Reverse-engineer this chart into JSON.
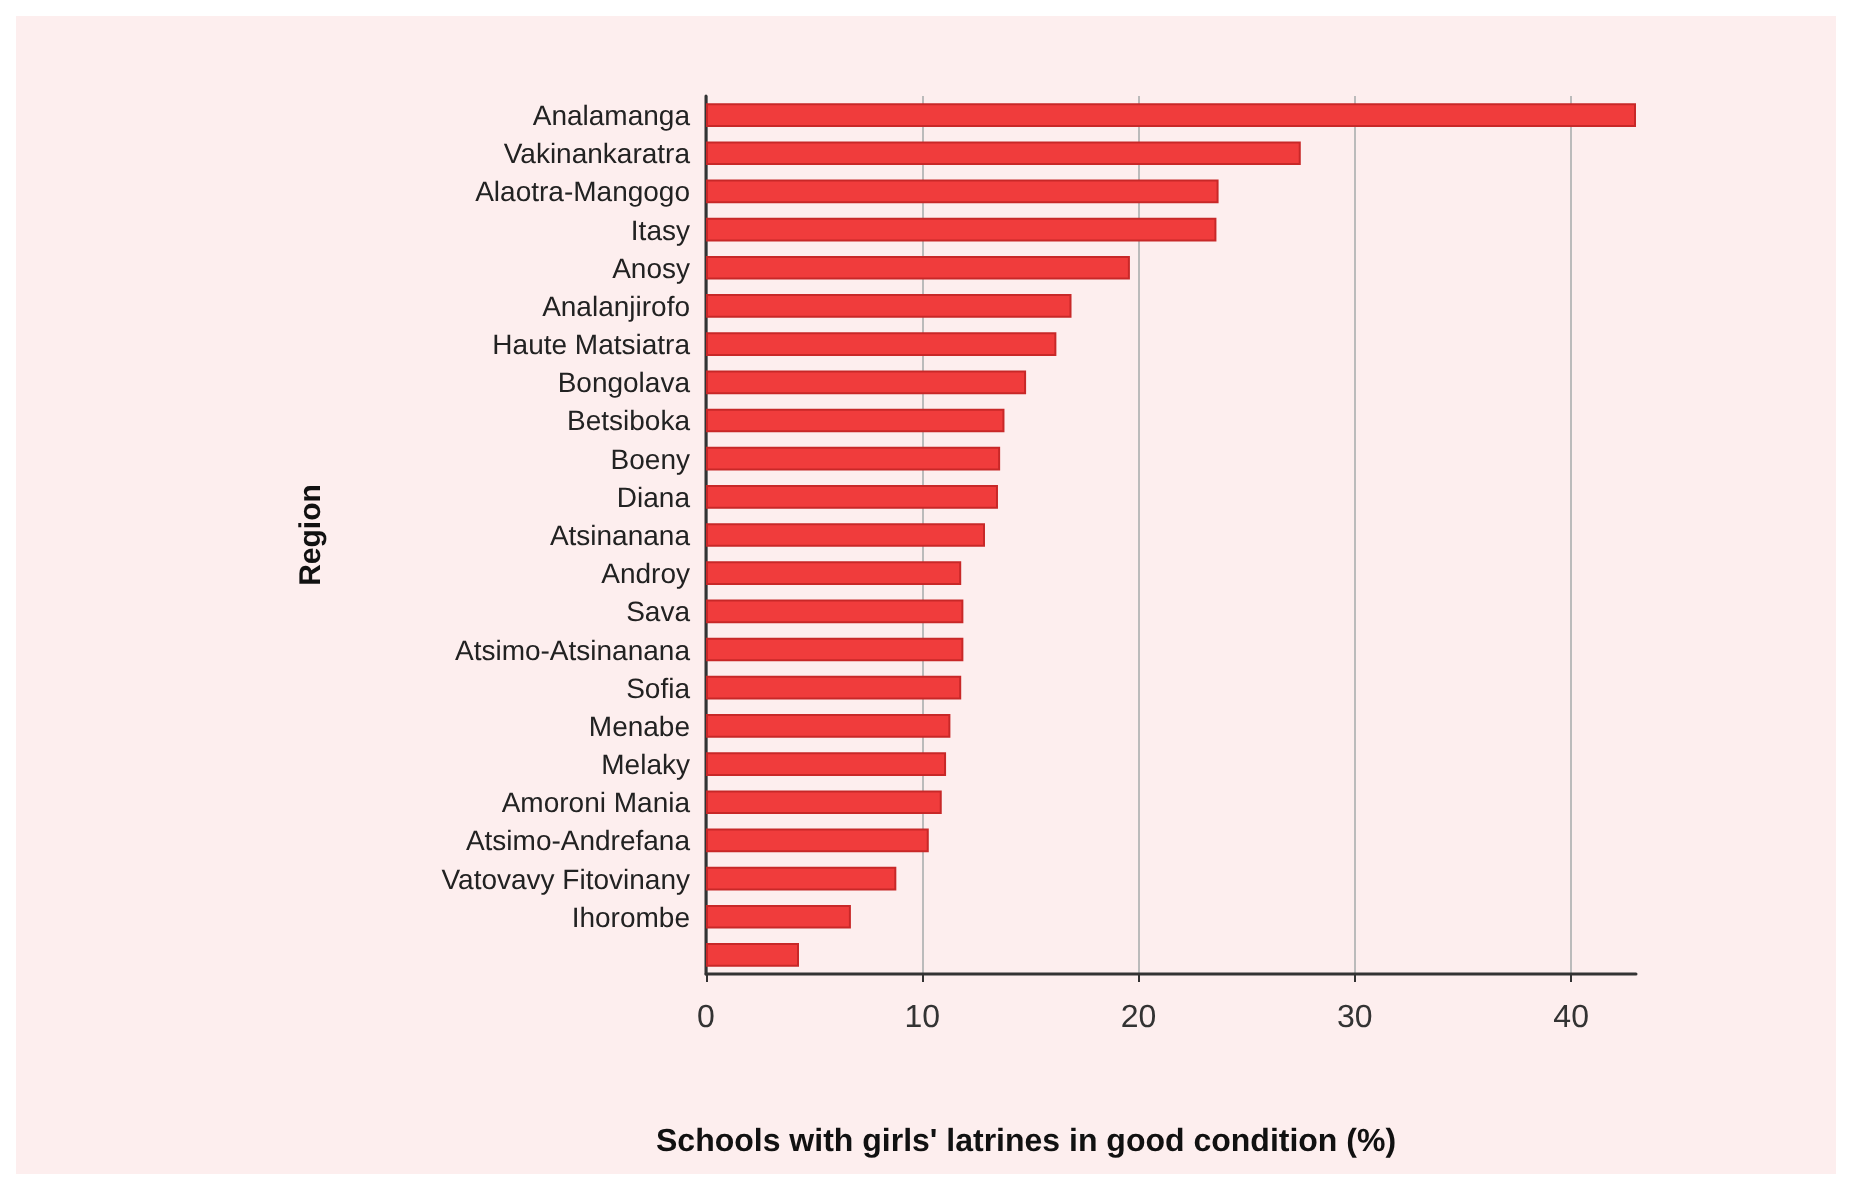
{
  "chart_data": {
    "type": "bar",
    "orientation": "horizontal",
    "xlabel": "Schools with girls' latrines in good condition (%)",
    "ylabel": "Region",
    "categories": [
      "Analamanga",
      "Vakinankaratra",
      "Alaotra-Mangogo",
      "Itasy",
      "Anosy",
      "Analanjirofo",
      "Haute Matsiatra",
      "Bongolava",
      "Betsiboka",
      "Boeny",
      "Diana",
      "Atsinanana",
      "Androy",
      "Sava",
      "Atsimo-Atsinanana",
      "Sofia",
      "Menabe",
      "Melaky",
      "Amoroni Mania",
      "Atsimo-Andrefana",
      "Vatovavy Fitovinany",
      "Ihorombe",
      null
    ],
    "values": [
      43.0,
      27.5,
      23.7,
      23.6,
      19.6,
      16.9,
      16.2,
      14.8,
      13.8,
      13.6,
      13.5,
      12.9,
      11.8,
      11.9,
      11.9,
      11.8,
      11.3,
      11.1,
      10.9,
      10.3,
      8.8,
      6.7,
      4.3
    ],
    "color": "#f03c3c",
    "xlim": [
      0,
      43
    ],
    "xticks": [
      0,
      10,
      20,
      30,
      40
    ],
    "grid": "x"
  }
}
